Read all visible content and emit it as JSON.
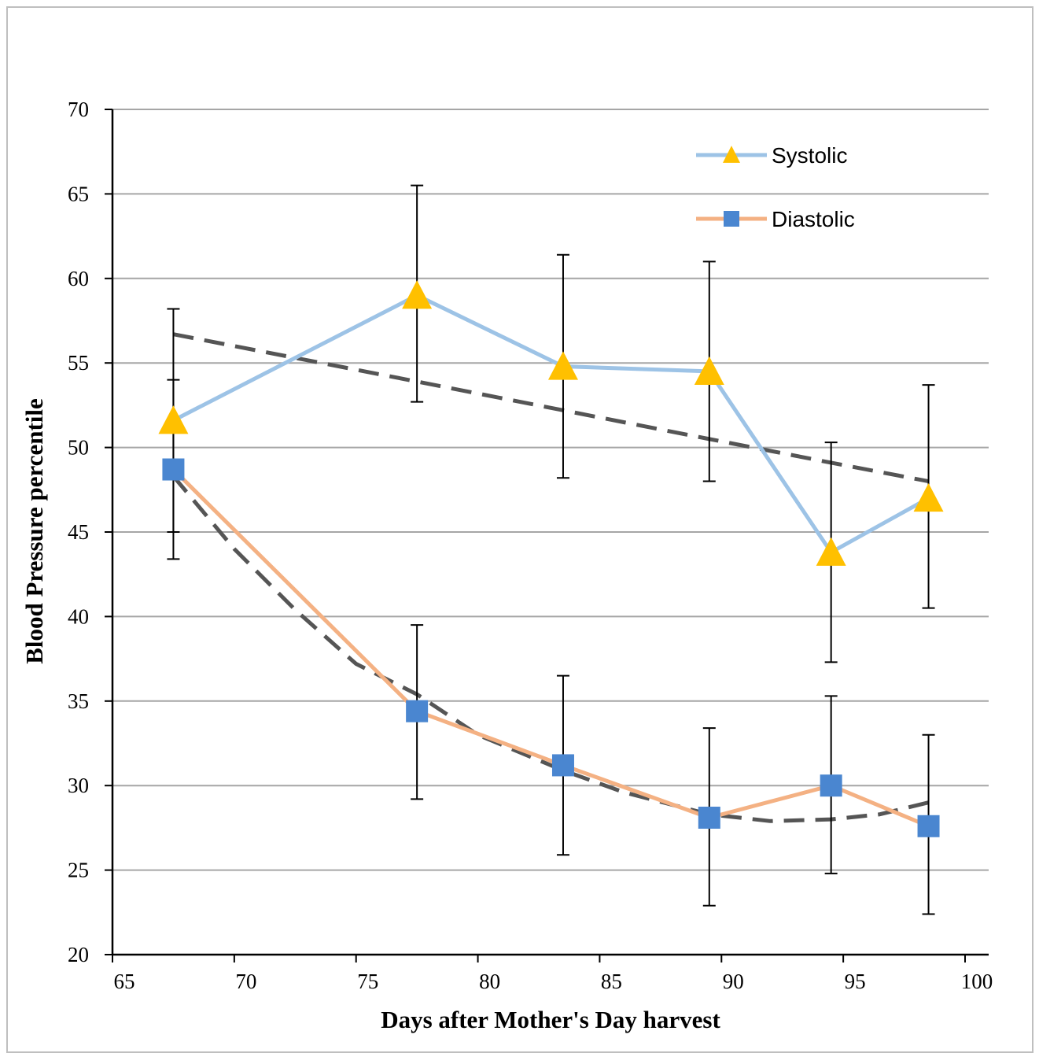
{
  "chart_data": {
    "type": "line",
    "xlabel": "Days after Mother's Day harvest",
    "ylabel": "Blood Pressure percentile",
    "xlim": [
      65,
      100
    ],
    "ylim": [
      20,
      70
    ],
    "xticks": [
      65,
      70,
      75,
      80,
      85,
      90,
      95,
      100
    ],
    "yticks": [
      20,
      25,
      30,
      35,
      40,
      45,
      50,
      55,
      60,
      65,
      70
    ],
    "grid": "horizontal",
    "legend_position": "top-right",
    "series": [
      {
        "name": "Systolic",
        "line_color": "#9dc3e6",
        "marker": "triangle",
        "marker_color": "#ffc000",
        "x": [
          67.5,
          77.5,
          83.5,
          89.5,
          94.5,
          98.5
        ],
        "y": [
          51.6,
          59.0,
          54.8,
          54.5,
          43.8,
          47.0
        ],
        "error_low": [
          45.0,
          52.7,
          48.2,
          48.0,
          37.3,
          40.5
        ],
        "error_high": [
          58.2,
          65.5,
          61.4,
          61.0,
          50.3,
          53.7
        ]
      },
      {
        "name": "Diastolic",
        "line_color": "#f4b183",
        "marker": "square",
        "marker_color": "#4a86d0",
        "x": [
          67.5,
          77.5,
          83.5,
          89.5,
          94.5,
          98.5
        ],
        "y": [
          48.7,
          34.4,
          31.2,
          28.1,
          30.0,
          27.6
        ],
        "error_low": [
          43.4,
          29.2,
          25.9,
          22.9,
          24.8,
          22.4
        ],
        "error_high": [
          54.0,
          39.5,
          36.5,
          33.4,
          35.3,
          33.0
        ]
      }
    ],
    "trendlines": [
      {
        "series": "Systolic",
        "style": "dashed",
        "color": "#555555",
        "x": [
          67.5,
          77.5,
          83.5,
          89.5,
          94.5,
          98.5
        ],
        "y": [
          56.7,
          53.9,
          52.2,
          50.5,
          49.1,
          48.0
        ]
      },
      {
        "series": "Diastolic",
        "style": "dashed",
        "color": "#555555",
        "x": [
          67.5,
          70.0,
          72.5,
          75.0,
          77.5,
          80.0,
          83.5,
          86.0,
          89.5,
          92.0,
          94.5,
          96.5,
          98.5
        ],
        "y": [
          48.3,
          44.0,
          40.4,
          37.2,
          35.4,
          33.0,
          30.9,
          29.6,
          28.3,
          27.9,
          28.0,
          28.3,
          29.0
        ]
      }
    ]
  }
}
